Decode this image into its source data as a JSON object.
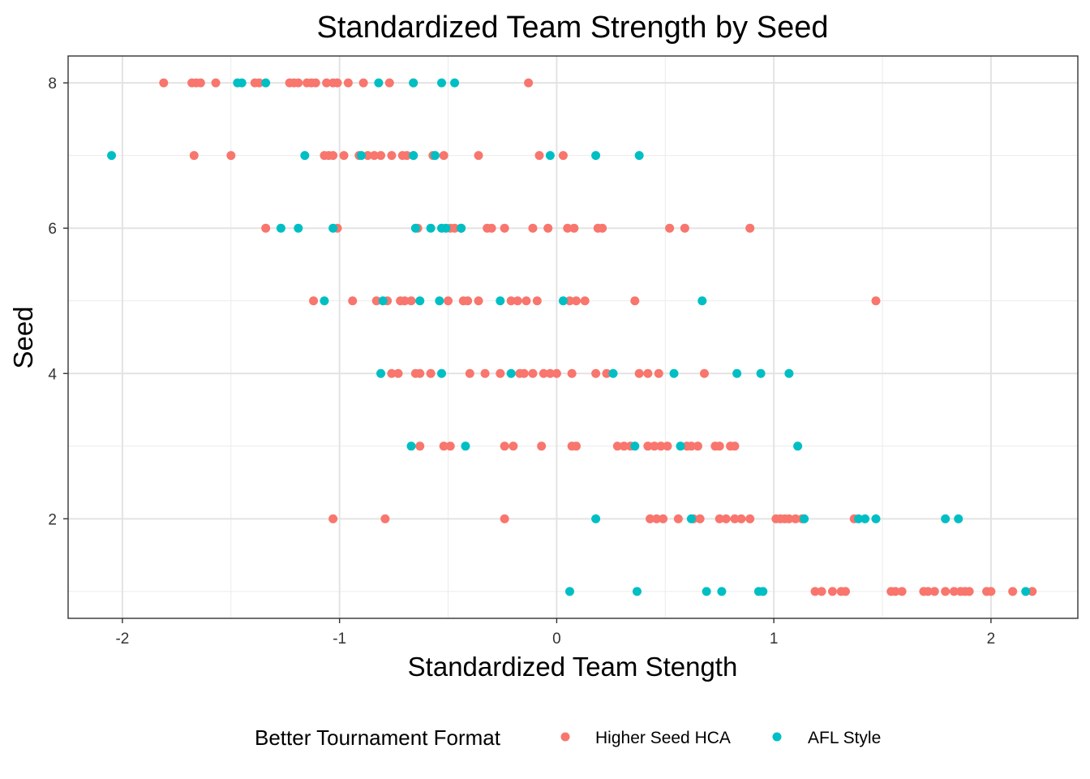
{
  "chart_data": {
    "type": "scatter",
    "title": "Standardized Team Strength by Seed",
    "xlabel": "Standardized Team Stength",
    "ylabel": "Seed",
    "xlim": [
      -2.25,
      2.4
    ],
    "ylim": [
      0.63,
      8.37
    ],
    "x_ticks": [
      -2,
      -1,
      0,
      1,
      2
    ],
    "x_tick_labels": [
      "-2",
      "-1",
      "0",
      "1",
      "2"
    ],
    "y_ticks": [
      2,
      4,
      6,
      8
    ],
    "y_tick_labels": [
      "2",
      "4",
      "6",
      "8"
    ],
    "x_minor_grid": [
      -1.5,
      -0.5,
      0.5,
      1.5
    ],
    "y_minor_grid": [
      1,
      3,
      5,
      7
    ],
    "grid": true,
    "legend": {
      "title": "Better Tournament Format",
      "position": "bottom"
    },
    "series": [
      {
        "name": "Higher Seed HCA",
        "color": "#F8766D",
        "points": [
          {
            "x": -1.81,
            "y": 8
          },
          {
            "x": -1.68,
            "y": 8
          },
          {
            "x": -1.66,
            "y": 8
          },
          {
            "x": -1.64,
            "y": 8
          },
          {
            "x": -1.57,
            "y": 8
          },
          {
            "x": -1.39,
            "y": 8
          },
          {
            "x": -1.37,
            "y": 8
          },
          {
            "x": -1.23,
            "y": 8
          },
          {
            "x": -1.21,
            "y": 8
          },
          {
            "x": -1.19,
            "y": 8
          },
          {
            "x": -1.15,
            "y": 8
          },
          {
            "x": -1.13,
            "y": 8
          },
          {
            "x": -1.11,
            "y": 8
          },
          {
            "x": -1.06,
            "y": 8
          },
          {
            "x": -1.03,
            "y": 8
          },
          {
            "x": -1.01,
            "y": 8
          },
          {
            "x": -0.96,
            "y": 8
          },
          {
            "x": -0.89,
            "y": 8
          },
          {
            "x": -0.77,
            "y": 8
          },
          {
            "x": -0.66,
            "y": 8
          },
          {
            "x": -0.13,
            "y": 8
          },
          {
            "x": -1.67,
            "y": 7
          },
          {
            "x": -1.5,
            "y": 7
          },
          {
            "x": -1.07,
            "y": 7
          },
          {
            "x": -1.05,
            "y": 7
          },
          {
            "x": -1.03,
            "y": 7
          },
          {
            "x": -0.98,
            "y": 7
          },
          {
            "x": -0.91,
            "y": 7
          },
          {
            "x": -0.87,
            "y": 7
          },
          {
            "x": -0.84,
            "y": 7
          },
          {
            "x": -0.81,
            "y": 7
          },
          {
            "x": -0.76,
            "y": 7
          },
          {
            "x": -0.71,
            "y": 7
          },
          {
            "x": -0.69,
            "y": 7
          },
          {
            "x": -0.66,
            "y": 7
          },
          {
            "x": -0.57,
            "y": 7
          },
          {
            "x": -0.52,
            "y": 7
          },
          {
            "x": -0.36,
            "y": 7
          },
          {
            "x": -0.08,
            "y": 7
          },
          {
            "x": 0.03,
            "y": 7
          },
          {
            "x": -1.34,
            "y": 6
          },
          {
            "x": -1.01,
            "y": 6
          },
          {
            "x": -0.64,
            "y": 6
          },
          {
            "x": -0.49,
            "y": 6
          },
          {
            "x": -0.47,
            "y": 6
          },
          {
            "x": -0.44,
            "y": 6
          },
          {
            "x": -0.32,
            "y": 6
          },
          {
            "x": -0.3,
            "y": 6
          },
          {
            "x": -0.24,
            "y": 6
          },
          {
            "x": -0.11,
            "y": 6
          },
          {
            "x": -0.04,
            "y": 6
          },
          {
            "x": 0.05,
            "y": 6
          },
          {
            "x": 0.08,
            "y": 6
          },
          {
            "x": 0.19,
            "y": 6
          },
          {
            "x": 0.21,
            "y": 6
          },
          {
            "x": 0.52,
            "y": 6
          },
          {
            "x": 0.59,
            "y": 6
          },
          {
            "x": 0.89,
            "y": 6
          },
          {
            "x": -1.12,
            "y": 5
          },
          {
            "x": -0.94,
            "y": 5
          },
          {
            "x": -0.83,
            "y": 5
          },
          {
            "x": -0.78,
            "y": 5
          },
          {
            "x": -0.72,
            "y": 5
          },
          {
            "x": -0.7,
            "y": 5
          },
          {
            "x": -0.67,
            "y": 5
          },
          {
            "x": -0.5,
            "y": 5
          },
          {
            "x": -0.43,
            "y": 5
          },
          {
            "x": -0.41,
            "y": 5
          },
          {
            "x": -0.36,
            "y": 5
          },
          {
            "x": -0.21,
            "y": 5
          },
          {
            "x": -0.18,
            "y": 5
          },
          {
            "x": -0.14,
            "y": 5
          },
          {
            "x": -0.09,
            "y": 5
          },
          {
            "x": 0.06,
            "y": 5
          },
          {
            "x": 0.09,
            "y": 5
          },
          {
            "x": 0.13,
            "y": 5
          },
          {
            "x": 0.36,
            "y": 5
          },
          {
            "x": 1.47,
            "y": 5
          },
          {
            "x": -0.76,
            "y": 4
          },
          {
            "x": -0.73,
            "y": 4
          },
          {
            "x": -0.65,
            "y": 4
          },
          {
            "x": -0.63,
            "y": 4
          },
          {
            "x": -0.58,
            "y": 4
          },
          {
            "x": -0.4,
            "y": 4
          },
          {
            "x": -0.33,
            "y": 4
          },
          {
            "x": -0.26,
            "y": 4
          },
          {
            "x": -0.17,
            "y": 4
          },
          {
            "x": -0.15,
            "y": 4
          },
          {
            "x": -0.11,
            "y": 4
          },
          {
            "x": -0.06,
            "y": 4
          },
          {
            "x": -0.03,
            "y": 4
          },
          {
            "x": 0,
            "y": 4
          },
          {
            "x": 0.07,
            "y": 4
          },
          {
            "x": 0.18,
            "y": 4
          },
          {
            "x": 0.23,
            "y": 4
          },
          {
            "x": 0.38,
            "y": 4
          },
          {
            "x": 0.42,
            "y": 4
          },
          {
            "x": 0.47,
            "y": 4
          },
          {
            "x": 0.68,
            "y": 4
          },
          {
            "x": -0.63,
            "y": 3
          },
          {
            "x": -0.52,
            "y": 3
          },
          {
            "x": -0.49,
            "y": 3
          },
          {
            "x": -0.24,
            "y": 3
          },
          {
            "x": -0.2,
            "y": 3
          },
          {
            "x": -0.07,
            "y": 3
          },
          {
            "x": 0.07,
            "y": 3
          },
          {
            "x": 0.09,
            "y": 3
          },
          {
            "x": 0.28,
            "y": 3
          },
          {
            "x": 0.31,
            "y": 3
          },
          {
            "x": 0.34,
            "y": 3
          },
          {
            "x": 0.42,
            "y": 3
          },
          {
            "x": 0.45,
            "y": 3
          },
          {
            "x": 0.48,
            "y": 3
          },
          {
            "x": 0.51,
            "y": 3
          },
          {
            "x": 0.6,
            "y": 3
          },
          {
            "x": 0.62,
            "y": 3
          },
          {
            "x": 0.65,
            "y": 3
          },
          {
            "x": 0.73,
            "y": 3
          },
          {
            "x": 0.75,
            "y": 3
          },
          {
            "x": 0.8,
            "y": 3
          },
          {
            "x": 0.82,
            "y": 3
          },
          {
            "x": -1.03,
            "y": 2
          },
          {
            "x": -0.79,
            "y": 2
          },
          {
            "x": -0.24,
            "y": 2
          },
          {
            "x": 0.43,
            "y": 2
          },
          {
            "x": 0.46,
            "y": 2
          },
          {
            "x": 0.49,
            "y": 2
          },
          {
            "x": 0.56,
            "y": 2
          },
          {
            "x": 0.63,
            "y": 2
          },
          {
            "x": 0.66,
            "y": 2
          },
          {
            "x": 0.75,
            "y": 2
          },
          {
            "x": 0.78,
            "y": 2
          },
          {
            "x": 0.82,
            "y": 2
          },
          {
            "x": 0.85,
            "y": 2
          },
          {
            "x": 0.89,
            "y": 2
          },
          {
            "x": 1.01,
            "y": 2
          },
          {
            "x": 1.03,
            "y": 2
          },
          {
            "x": 1.05,
            "y": 2
          },
          {
            "x": 1.07,
            "y": 2
          },
          {
            "x": 1.1,
            "y": 2
          },
          {
            "x": 1.13,
            "y": 2
          },
          {
            "x": 1.37,
            "y": 2
          },
          {
            "x": 1.19,
            "y": 1
          },
          {
            "x": 1.22,
            "y": 1
          },
          {
            "x": 1.27,
            "y": 1
          },
          {
            "x": 1.31,
            "y": 1
          },
          {
            "x": 1.33,
            "y": 1
          },
          {
            "x": 1.54,
            "y": 1
          },
          {
            "x": 1.56,
            "y": 1
          },
          {
            "x": 1.59,
            "y": 1
          },
          {
            "x": 1.69,
            "y": 1
          },
          {
            "x": 1.71,
            "y": 1
          },
          {
            "x": 1.74,
            "y": 1
          },
          {
            "x": 1.79,
            "y": 1
          },
          {
            "x": 1.83,
            "y": 1
          },
          {
            "x": 1.86,
            "y": 1
          },
          {
            "x": 1.88,
            "y": 1
          },
          {
            "x": 1.9,
            "y": 1
          },
          {
            "x": 1.98,
            "y": 1
          },
          {
            "x": 2.0,
            "y": 1
          },
          {
            "x": 2.1,
            "y": 1
          },
          {
            "x": 2.19,
            "y": 1
          }
        ]
      },
      {
        "name": "AFL Style",
        "color": "#00BFC4",
        "points": [
          {
            "x": -1.47,
            "y": 8
          },
          {
            "x": -1.45,
            "y": 8
          },
          {
            "x": -1.34,
            "y": 8
          },
          {
            "x": -0.82,
            "y": 8
          },
          {
            "x": -0.66,
            "y": 8
          },
          {
            "x": -0.53,
            "y": 8
          },
          {
            "x": -0.47,
            "y": 8
          },
          {
            "x": -2.05,
            "y": 7
          },
          {
            "x": -1.16,
            "y": 7
          },
          {
            "x": -0.9,
            "y": 7
          },
          {
            "x": -0.66,
            "y": 7
          },
          {
            "x": -0.56,
            "y": 7
          },
          {
            "x": -0.03,
            "y": 7
          },
          {
            "x": 0.18,
            "y": 7
          },
          {
            "x": 0.38,
            "y": 7
          },
          {
            "x": -1.27,
            "y": 6
          },
          {
            "x": -1.19,
            "y": 6
          },
          {
            "x": -1.03,
            "y": 6
          },
          {
            "x": -0.65,
            "y": 6
          },
          {
            "x": -0.58,
            "y": 6
          },
          {
            "x": -0.53,
            "y": 6
          },
          {
            "x": -0.51,
            "y": 6
          },
          {
            "x": -0.44,
            "y": 6
          },
          {
            "x": -1.07,
            "y": 5
          },
          {
            "x": -0.8,
            "y": 5
          },
          {
            "x": -0.63,
            "y": 5
          },
          {
            "x": -0.54,
            "y": 5
          },
          {
            "x": -0.26,
            "y": 5
          },
          {
            "x": 0.03,
            "y": 5
          },
          {
            "x": 0.67,
            "y": 5
          },
          {
            "x": -0.81,
            "y": 4
          },
          {
            "x": -0.53,
            "y": 4
          },
          {
            "x": -0.21,
            "y": 4
          },
          {
            "x": 0.26,
            "y": 4
          },
          {
            "x": 0.54,
            "y": 4
          },
          {
            "x": 0.83,
            "y": 4
          },
          {
            "x": 0.94,
            "y": 4
          },
          {
            "x": 1.07,
            "y": 4
          },
          {
            "x": -0.67,
            "y": 3
          },
          {
            "x": -0.42,
            "y": 3
          },
          {
            "x": 0.36,
            "y": 3
          },
          {
            "x": 0.57,
            "y": 3
          },
          {
            "x": 1.11,
            "y": 3
          },
          {
            "x": 0.18,
            "y": 2
          },
          {
            "x": 0.62,
            "y": 2
          },
          {
            "x": 1.14,
            "y": 2
          },
          {
            "x": 1.39,
            "y": 2
          },
          {
            "x": 1.42,
            "y": 2
          },
          {
            "x": 1.47,
            "y": 2
          },
          {
            "x": 1.79,
            "y": 2
          },
          {
            "x": 1.85,
            "y": 2
          },
          {
            "x": 0.06,
            "y": 1
          },
          {
            "x": 0.37,
            "y": 1
          },
          {
            "x": 0.69,
            "y": 1
          },
          {
            "x": 0.76,
            "y": 1
          },
          {
            "x": 0.93,
            "y": 1
          },
          {
            "x": 0.95,
            "y": 1
          },
          {
            "x": 2.16,
            "y": 1
          }
        ]
      }
    ]
  }
}
